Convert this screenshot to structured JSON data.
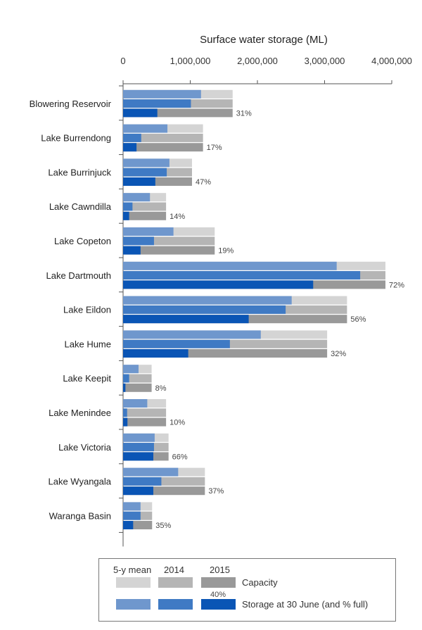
{
  "chart_data": {
    "type": "bar",
    "orientation": "horizontal",
    "title": "",
    "xlabel": "Surface water storage (ML)",
    "xlim": [
      0,
      4000000
    ],
    "xticks": [
      0,
      1000000,
      2000000,
      3000000,
      4000000
    ],
    "xtick_labels": [
      "0",
      "1,000,000",
      "2,000,000",
      "3,000,000",
      "4,000,000"
    ],
    "axis_position": "top",
    "grid": false,
    "categories": [
      "Blowering Reservoir",
      "Lake Burrendong",
      "Lake Burrinjuck",
      "Lake Cawndilla",
      "Lake Copeton",
      "Lake Dartmouth",
      "Lake Eildon",
      "Lake Hume",
      "Lake Keepit",
      "Lake Menindee",
      "Lake Victoria",
      "Lake Wyangala",
      "Waranga Basin"
    ],
    "capacity": [
      1631000,
      1190000,
      1026000,
      640000,
      1364000,
      3906000,
      3334000,
      3038000,
      425000,
      640000,
      677000,
      1218000,
      432000
    ],
    "series": [
      {
        "name": "5-y mean",
        "values": [
          1160000,
          660000,
          690000,
          400000,
          750000,
          3180000,
          2510000,
          2050000,
          230000,
          360000,
          470000,
          820000,
          260000
        ]
      },
      {
        "name": "2014",
        "values": [
          1010000,
          270000,
          650000,
          140000,
          460000,
          3530000,
          2420000,
          1590000,
          90000,
          60000,
          460000,
          570000,
          260000
        ]
      },
      {
        "name": "2015",
        "values": [
          510000,
          200000,
          480000,
          90000,
          260000,
          2830000,
          1870000,
          970000,
          35000,
          65000,
          450000,
          450000,
          150000
        ]
      }
    ],
    "percent_full_2015": [
      "31%",
      "17%",
      "47%",
      "14%",
      "19%",
      "72%",
      "56%",
      "32%",
      "8%",
      "10%",
      "66%",
      "37%",
      "35%"
    ],
    "colors": {
      "capacity": [
        "#d4d4d4",
        "#b5b5b5",
        "#999999"
      ],
      "storage": [
        "#6f97cd",
        "#3f7ac4",
        "#0a55b5"
      ]
    },
    "legend": {
      "placement": "bottom",
      "headers": [
        "5-y mean",
        "2014",
        "2015"
      ],
      "rows": [
        "Capacity",
        "Storage at 30 June (and % full)"
      ],
      "note": "40%"
    }
  }
}
